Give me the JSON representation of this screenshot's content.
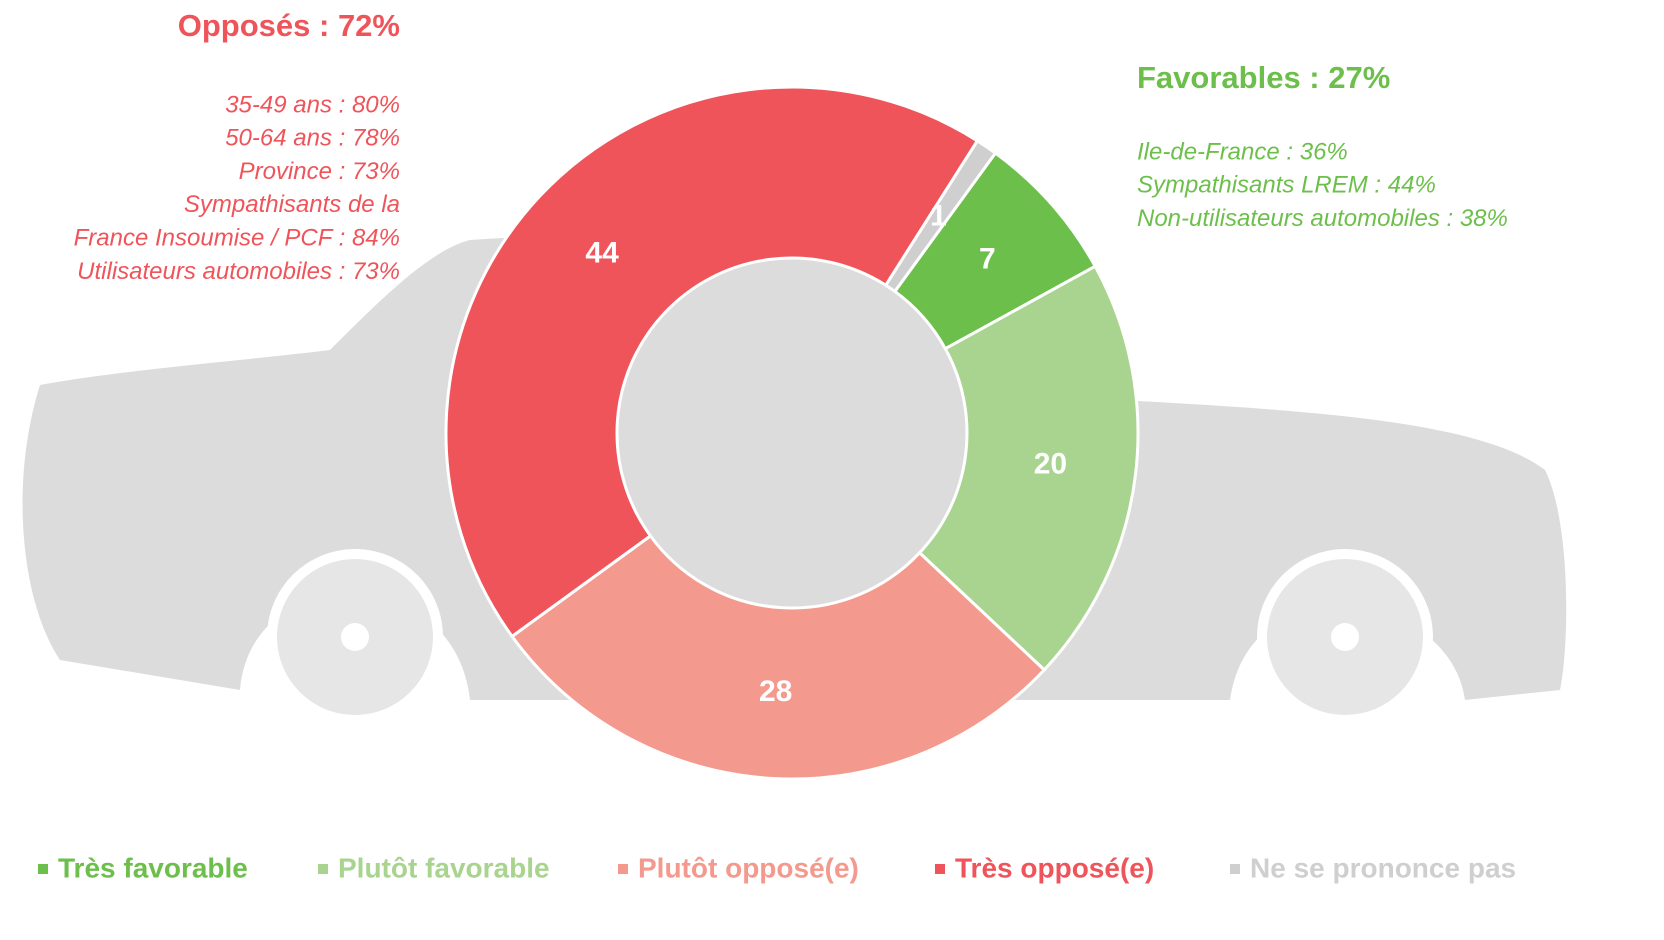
{
  "chart_data": {
    "type": "donut",
    "categories": [
      "Très favorable",
      "Plutôt favorable",
      "Plutôt opposé(e)",
      "Très opposé(e)",
      "Ne se prononce pas"
    ],
    "values": [
      7,
      20,
      28,
      44,
      1
    ],
    "colors": [
      "#6dbf4b",
      "#a9d48f",
      "#f4998d",
      "#ef545a",
      "#d0cfcf"
    ],
    "legend": "bottom",
    "annotations": [
      {
        "title": "Opposés : 72%",
        "color": "#ef545a",
        "align": "right",
        "lines": [
          "35-49 ans : 80%",
          "50-64 ans : 78%",
          "Province : 73%",
          "Sympathisants de la",
          "France Insoumise / PCF : 84%",
          "Utilisateurs automobiles : 73%"
        ]
      },
      {
        "title": "Favorables : 27%",
        "color": "#6dbf4b",
        "align": "left",
        "lines": [
          "Ile-de-France : 36%",
          "Sympathisants LREM : 44%",
          "Non-utilisateurs automobiles : 38%"
        ]
      }
    ]
  }
}
